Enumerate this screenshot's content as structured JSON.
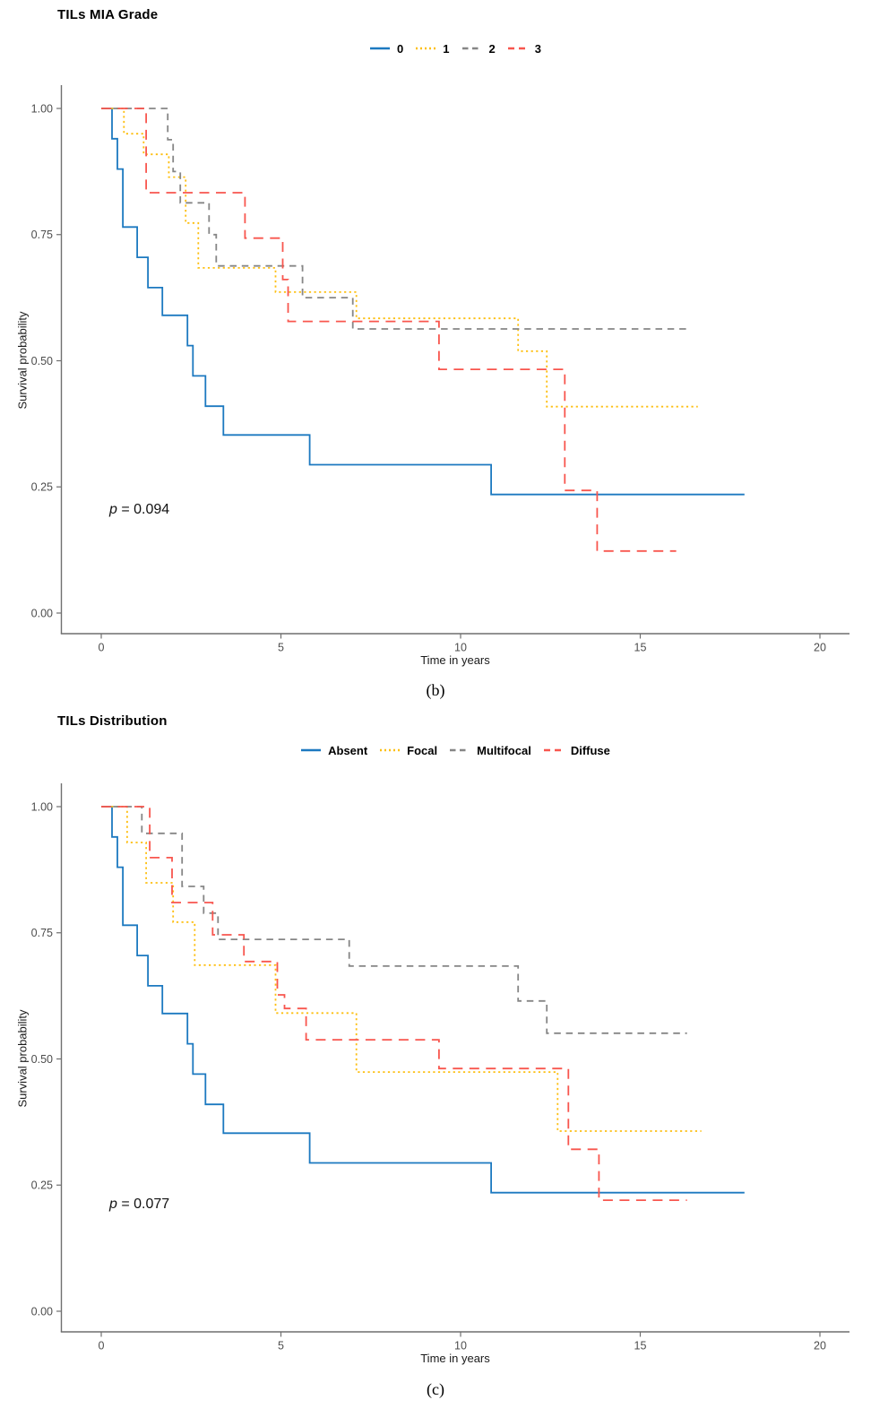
{
  "colors": {
    "blue": "#1c79c0",
    "yellow": "#fdbf11",
    "gray": "#868686",
    "red": "#f8564e",
    "axis_line": "#6f6f6f",
    "tick_text": "#4d4d4d"
  },
  "chart_data": [
    {
      "type": "line",
      "subtype": "kaplan-meier-step",
      "panel": "b",
      "title": "TILs MIA Grade",
      "caption": "(b)",
      "p_italic": "p",
      "p_text": " = 0.094",
      "xlabel": "Time in years",
      "ylabel": "Survival probability",
      "xlim": [
        0,
        21
      ],
      "ylim": [
        0,
        1
      ],
      "grid": "off",
      "legend_position": "top-center",
      "x_ticks": [
        "0",
        "5",
        "10",
        "15",
        "20"
      ],
      "x_tick_values": [
        0,
        5,
        10,
        15,
        20
      ],
      "y_ticks": [
        "1.00",
        "0.75",
        "0.50",
        "0.25",
        "0.00"
      ],
      "y_tick_values": [
        1.0,
        0.75,
        0.5,
        0.25,
        0.0
      ],
      "legend": [
        {
          "label": "0",
          "color": "blue",
          "dash": "solid"
        },
        {
          "label": "1",
          "color": "yellow",
          "dash": "dotted"
        },
        {
          "label": "2",
          "color": "gray",
          "dash": "dashed"
        },
        {
          "label": "3",
          "color": "red",
          "dash": "longdash"
        }
      ],
      "series": [
        {
          "name": "0",
          "color": "blue",
          "dash": "solid",
          "end_time": 17.9,
          "points": [
            [
              0,
              1.0
            ],
            [
              0.3,
              0.94
            ],
            [
              0.45,
              0.88
            ],
            [
              0.6,
              0.765
            ],
            [
              1.0,
              0.705
            ],
            [
              1.3,
              0.645
            ],
            [
              1.7,
              0.59
            ],
            [
              2.4,
              0.53
            ],
            [
              2.55,
              0.47
            ],
            [
              2.9,
              0.41
            ],
            [
              3.4,
              0.353
            ],
            [
              5.8,
              0.294
            ],
            [
              10.85,
              0.235
            ]
          ]
        },
        {
          "name": "1",
          "color": "yellow",
          "dash": "dotted",
          "end_time": 16.6,
          "points": [
            [
              0,
              1.0
            ],
            [
              0.63,
              0.95
            ],
            [
              1.18,
              0.909
            ],
            [
              1.88,
              0.864
            ],
            [
              2.35,
              0.773
            ],
            [
              2.7,
              0.684
            ],
            [
              4.85,
              0.636
            ],
            [
              7.1,
              0.584
            ],
            [
              11.6,
              0.519
            ],
            [
              12.4,
              0.409
            ]
          ]
        },
        {
          "name": "2",
          "color": "gray",
          "dash": "dashed",
          "end_time": 16.3,
          "points": [
            [
              0,
              1.0
            ],
            [
              1.85,
              0.938
            ],
            [
              2.0,
              0.875
            ],
            [
              2.2,
              0.813
            ],
            [
              3.0,
              0.75
            ],
            [
              3.2,
              0.688
            ],
            [
              5.6,
              0.625
            ],
            [
              7.0,
              0.563
            ]
          ]
        },
        {
          "name": "3",
          "color": "red",
          "dash": "longdash",
          "end_time": 16.0,
          "points": [
            [
              0,
              1.0
            ],
            [
              1.25,
              0.833
            ],
            [
              4.0,
              0.743
            ],
            [
              5.05,
              0.661
            ],
            [
              5.2,
              0.578
            ],
            [
              9.4,
              0.483
            ],
            [
              12.9,
              0.243
            ],
            [
              13.8,
              0.123
            ]
          ]
        }
      ]
    },
    {
      "type": "line",
      "subtype": "kaplan-meier-step",
      "panel": "c",
      "title": "TILs Distribution",
      "caption": "(c)",
      "p_italic": "p",
      "p_text": " = 0.077",
      "xlabel": "Time in years",
      "ylabel": "Survival probability",
      "xlim": [
        0,
        21
      ],
      "ylim": [
        0,
        1
      ],
      "grid": "off",
      "legend_position": "top-center",
      "x_ticks": [
        "0",
        "5",
        "10",
        "15",
        "20"
      ],
      "x_tick_values": [
        0,
        5,
        10,
        15,
        20
      ],
      "y_ticks": [
        "1.00",
        "0.75",
        "0.50",
        "0.25",
        "0.00"
      ],
      "y_tick_values": [
        1.0,
        0.75,
        0.5,
        0.25,
        0.0
      ],
      "legend": [
        {
          "label": "Absent",
          "color": "blue",
          "dash": "solid"
        },
        {
          "label": "Focal",
          "color": "yellow",
          "dash": "dotted"
        },
        {
          "label": "Multifocal",
          "color": "gray",
          "dash": "dashed"
        },
        {
          "label": "Diffuse",
          "color": "red",
          "dash": "longdash"
        }
      ],
      "series": [
        {
          "name": "Absent",
          "color": "blue",
          "dash": "solid",
          "end_time": 17.9,
          "points": [
            [
              0,
              1.0
            ],
            [
              0.3,
              0.94
            ],
            [
              0.45,
              0.88
            ],
            [
              0.6,
              0.765
            ],
            [
              1.0,
              0.705
            ],
            [
              1.3,
              0.645
            ],
            [
              1.7,
              0.59
            ],
            [
              2.4,
              0.53
            ],
            [
              2.55,
              0.47
            ],
            [
              2.9,
              0.41
            ],
            [
              3.4,
              0.353
            ],
            [
              5.8,
              0.294
            ],
            [
              10.85,
              0.235
            ]
          ]
        },
        {
          "name": "Focal",
          "color": "yellow",
          "dash": "dotted",
          "end_time": 16.7,
          "points": [
            [
              0,
              1.0
            ],
            [
              0.72,
              0.929
            ],
            [
              1.25,
              0.849
            ],
            [
              2.0,
              0.771
            ],
            [
              2.6,
              0.686
            ],
            [
              4.85,
              0.591
            ],
            [
              7.1,
              0.474
            ],
            [
              12.7,
              0.357
            ]
          ]
        },
        {
          "name": "Multifocal",
          "color": "gray",
          "dash": "dashed",
          "end_time": 16.3,
          "points": [
            [
              0,
              1.0
            ],
            [
              1.13,
              0.947
            ],
            [
              2.25,
              0.842
            ],
            [
              2.85,
              0.789
            ],
            [
              3.25,
              0.737
            ],
            [
              6.9,
              0.684
            ],
            [
              11.6,
              0.615
            ],
            [
              12.4,
              0.551
            ]
          ]
        },
        {
          "name": "Diffuse",
          "color": "red",
          "dash": "longdash",
          "end_time": 16.3,
          "points": [
            [
              0,
              1.0
            ],
            [
              1.35,
              0.899
            ],
            [
              1.97,
              0.81
            ],
            [
              3.1,
              0.746
            ],
            [
              3.97,
              0.693
            ],
            [
              4.9,
              0.627
            ],
            [
              5.1,
              0.6
            ],
            [
              5.7,
              0.538
            ],
            [
              9.4,
              0.481
            ],
            [
              13.0,
              0.321
            ],
            [
              13.85,
              0.22
            ]
          ]
        }
      ]
    }
  ]
}
